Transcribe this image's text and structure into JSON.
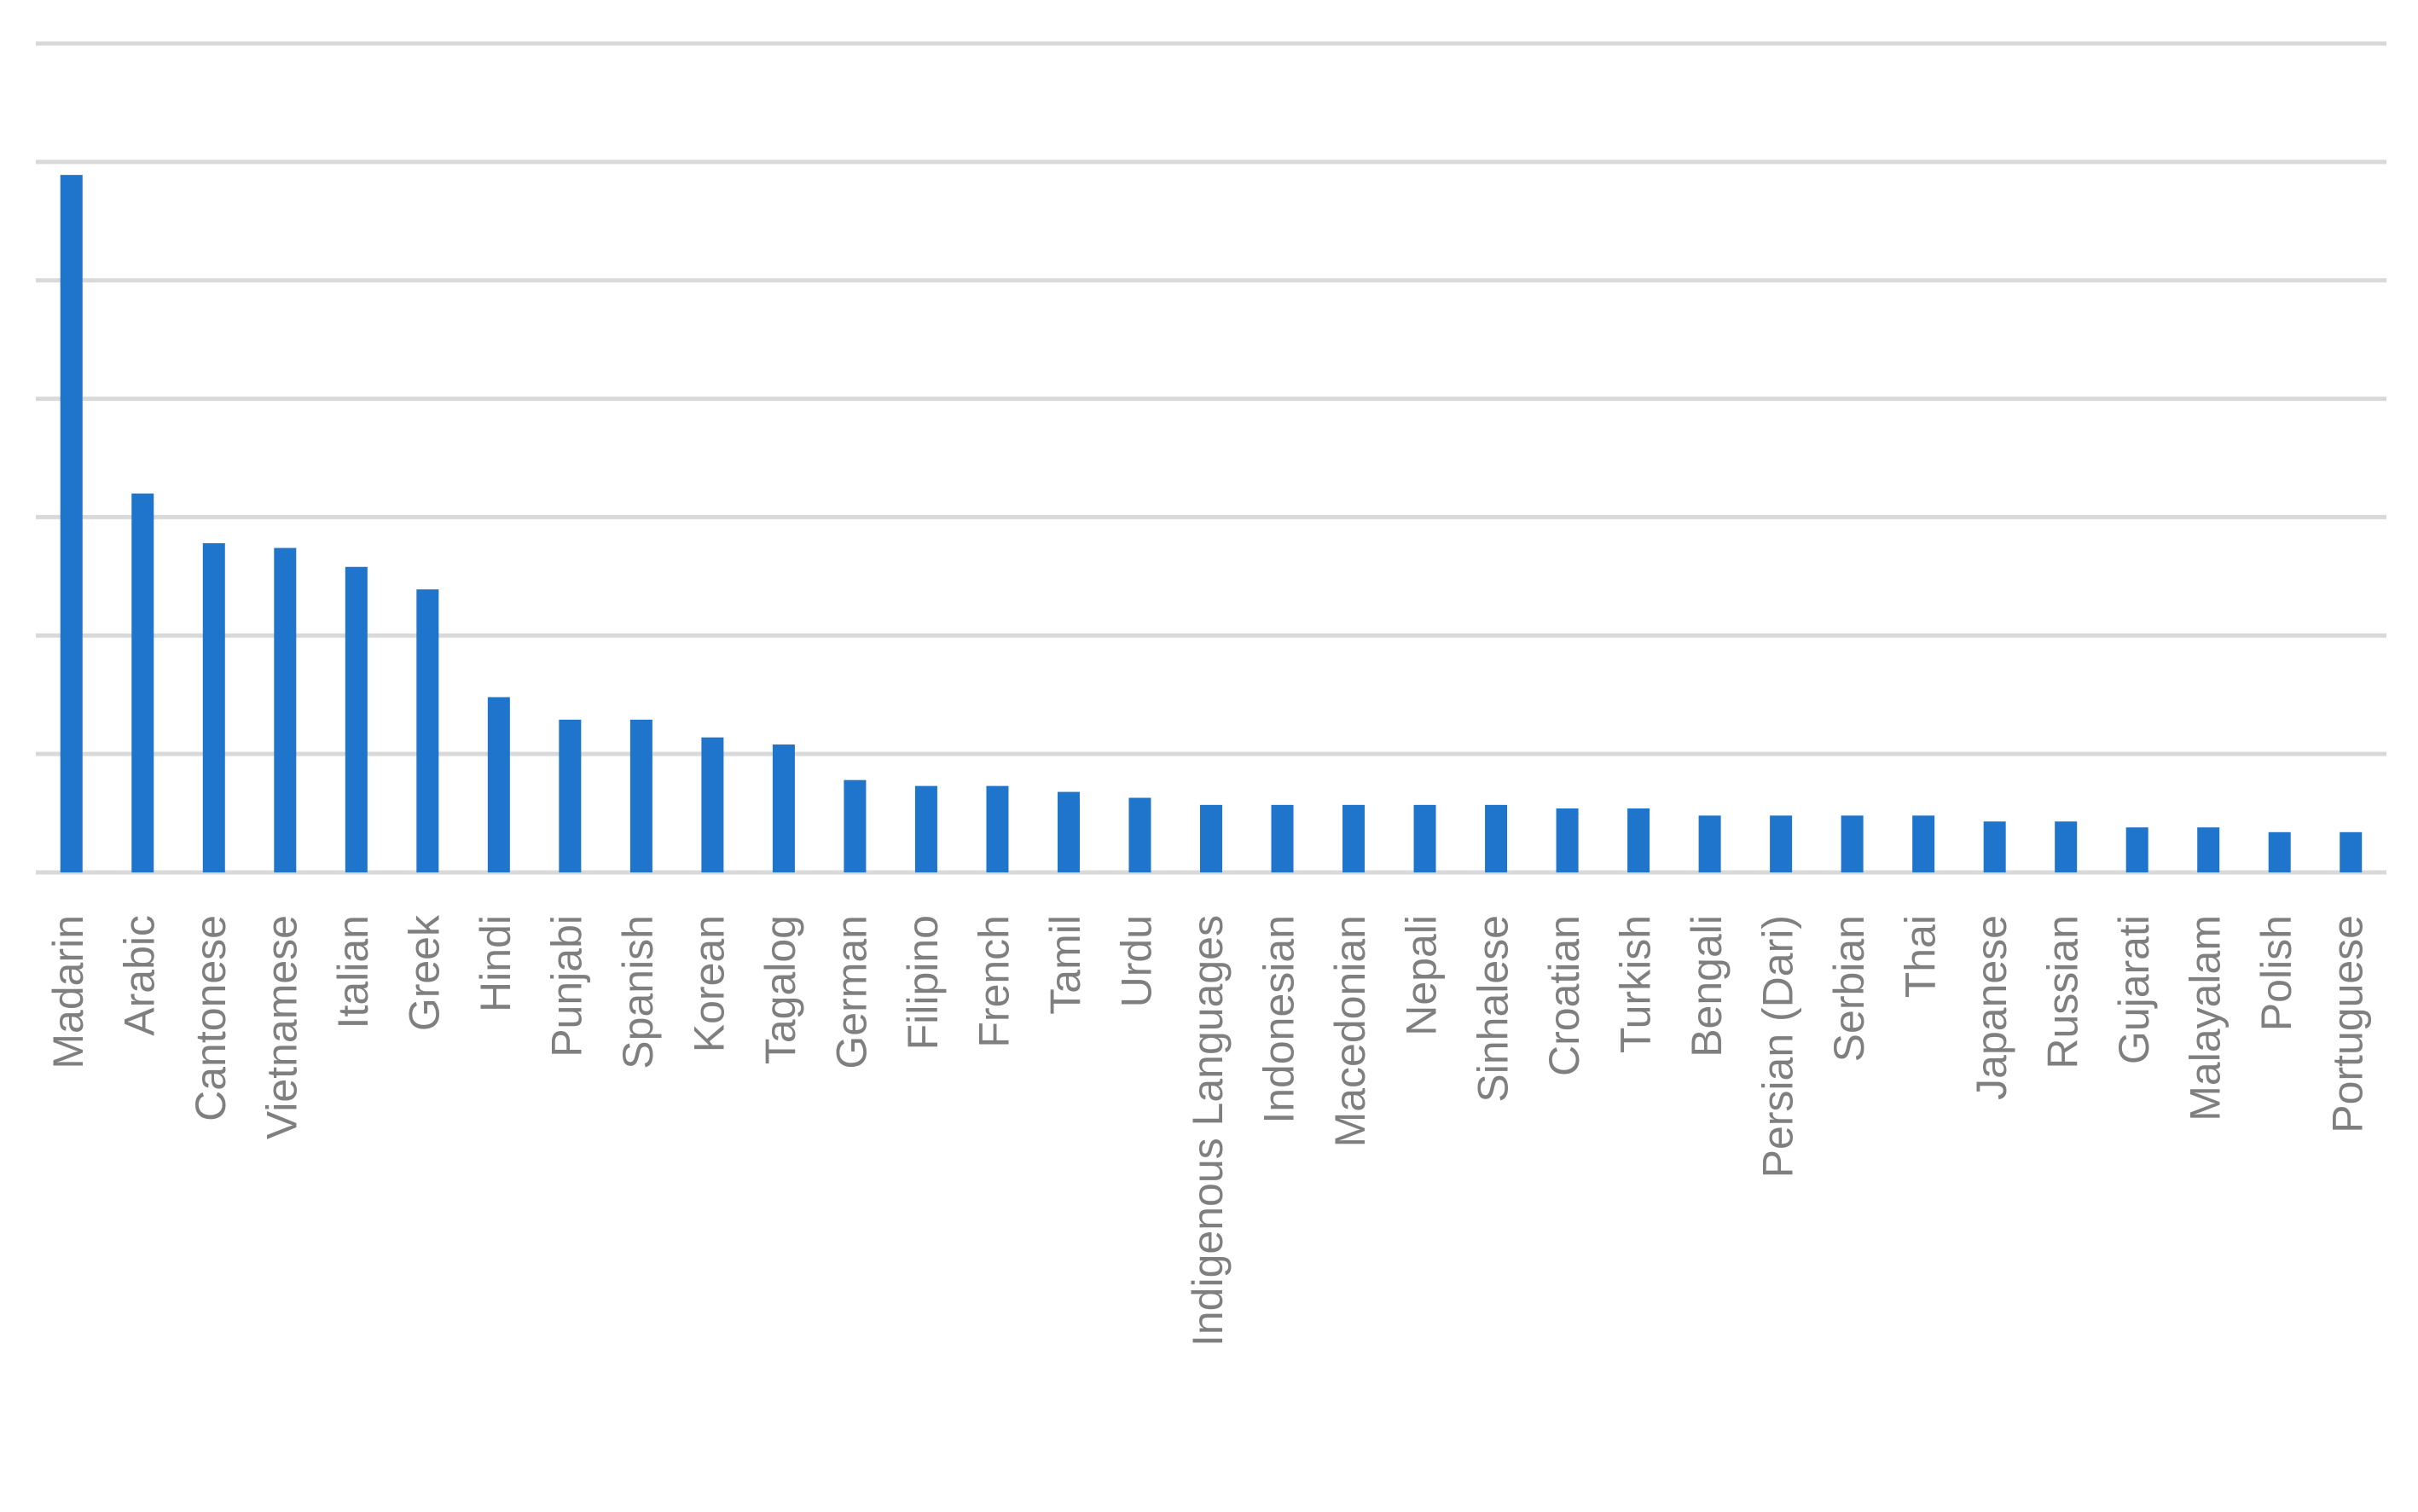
{
  "chart_data": {
    "type": "bar",
    "categories": [
      "Madarin",
      "Arabic",
      "Cantonese",
      "Vietnamese",
      "Italian",
      "Greek",
      "Hindi",
      "Punjabi",
      "Spanish",
      "Korean",
      "Tagalog",
      "German",
      "Filipino",
      "French",
      "Tamil",
      "Urdu",
      "Indigenous Languages",
      "Indonesian",
      "Macedonian",
      "Nepali",
      "Sinhalese",
      "Croatian",
      "Turkish",
      "Bengali",
      "Persian (Dari)",
      "Serbian",
      "Thai",
      "Japanese",
      "Russian",
      "Gujarati",
      "Malayalam",
      "Polish",
      "Portuguese"
    ],
    "values": [
      5.89,
      3.2,
      2.78,
      2.74,
      2.58,
      2.39,
      1.48,
      1.29,
      1.29,
      1.14,
      1.08,
      0.78,
      0.73,
      0.73,
      0.68,
      0.63,
      0.57,
      0.57,
      0.57,
      0.57,
      0.57,
      0.54,
      0.54,
      0.48,
      0.48,
      0.48,
      0.48,
      0.43,
      0.43,
      0.38,
      0.38,
      0.34,
      0.34
    ],
    "color": "#1f74cc",
    "ylim": [
      0,
      7
    ],
    "yticks": [
      0,
      1,
      2,
      3,
      4,
      5,
      6,
      7
    ],
    "grid": true
  }
}
